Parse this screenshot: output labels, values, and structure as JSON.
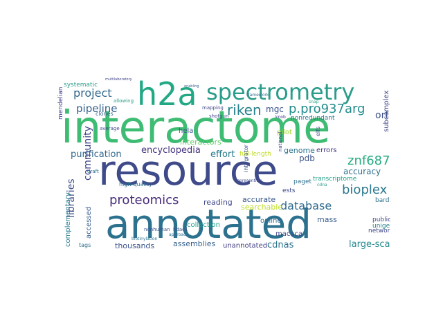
{
  "words": {
    "interactome": "interactome",
    "resource": "resource",
    "annotated": "annotated",
    "spectrometry": "spectrometry",
    "h2a": "h2a",
    "project": "project",
    "pipeline": "pipeline",
    "community": "community",
    "riken": "riken",
    "mgc": "mgc",
    "p_pro937arg": "p.pro937arg",
    "orf": "orf",
    "interactors": "interactors",
    "encyclopedia": "encyclopedia",
    "purification": "purification",
    "effort": "effort",
    "hela": "hela",
    "pilot": "pilot",
    "genome": "genome",
    "errors": "errors",
    "znf687": "znf687",
    "accuracy": "accuracy",
    "bioplex": "bioplex",
    "proteomics": "proteomics",
    "libraries": "libraries",
    "database": "database",
    "reading": "reading",
    "accurate": "accurate",
    "searchable": "searchable",
    "pdb": "pdb",
    "transcriptome": "transcriptome",
    "mendelian": "mendelian",
    "systematic": "systematic",
    "complementary": "complementary",
    "accessed": "accessed",
    "thousands": "thousands",
    "assemblies": "assemblies",
    "unannotated": "unannotated",
    "cdnas": "cdnas",
    "macaca": "macaca",
    "large_scale": "large-scale",
    "mass": "mass",
    "unigene": "unigene",
    "networks": "networks",
    "bard1": "bard1",
    "public": "public",
    "subcomplex": "subcomplex",
    "full_length": "full-length",
    "online": "online",
    "ests": "ests",
    "paget": "paget",
    "collection": "collection",
    "high_quality": "high-quality",
    "nonredundant": "nonredundant",
    "integrator": "integrator",
    "clones": "clones",
    "allowing": "allowing",
    "mapping": "mapping",
    "average": "average",
    "tags": "tags",
    "draft": "draft",
    "national": "national",
    "shotgun": "shotgun",
    "framework": "framework",
    "elfs": "elfs",
    "multilaboratory": "multilaboratory",
    "nonhuman": "nonhuman",
    "hdac1": "hdac1",
    "biotinylation": "biotinylation",
    "cdna": "cdna",
    "snap": "snap",
    "knob": "knob",
    "approach": "approach",
    "representing": "representing",
    "enabling": "enabling"
  }
}
